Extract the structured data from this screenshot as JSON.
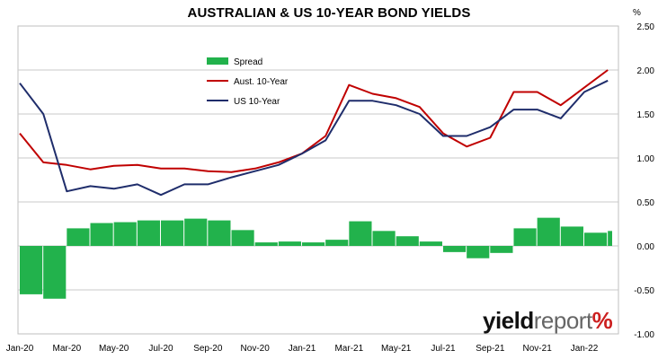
{
  "title": "AUSTRALIAN & US 10-YEAR BOND YIELDS",
  "unit_label": "%",
  "branding": {
    "part1": "yield",
    "part2": "report",
    "part3": "%"
  },
  "colors": {
    "spread": "#22b24c",
    "aus": "#c00000",
    "us": "#1f2d6b",
    "grid": "#c8c8c8"
  },
  "chart_data": {
    "type": "line",
    "title": "AUSTRALIAN & US 10-YEAR BOND YIELDS",
    "ylabel": "%",
    "ylim": [
      -1.0,
      2.5
    ],
    "y_ticks": [
      "2.50",
      "2.00",
      "1.50",
      "1.00",
      "0.50",
      "0.00",
      "-0.50",
      "-1.00"
    ],
    "x_ticks": [
      "Jan-20",
      "Mar-20",
      "May-20",
      "Jul-20",
      "Sep-20",
      "Nov-20",
      "Jan-21",
      "Mar-21",
      "May-21",
      "Jul-21",
      "Sep-21",
      "Nov-21",
      "Jan-22"
    ],
    "grid": true,
    "legend_position": "top-center",
    "x_dates": [
      "Jan-20",
      "Feb-20",
      "Mar-20",
      "Apr-20",
      "May-20",
      "Jun-20",
      "Jul-20",
      "Aug-20",
      "Sep-20",
      "Oct-20",
      "Nov-20",
      "Dec-20",
      "Jan-21",
      "Feb-21",
      "Mar-21",
      "Apr-21",
      "May-21",
      "Jun-21",
      "Jul-21",
      "Aug-21",
      "Sep-21",
      "Oct-21",
      "Nov-21",
      "Dec-21",
      "Jan-22",
      "Feb-22"
    ],
    "series": [
      {
        "name": "Spread",
        "type": "bar",
        "values": [
          -0.55,
          -0.6,
          0.2,
          0.26,
          0.27,
          0.29,
          0.29,
          0.31,
          0.29,
          0.18,
          0.04,
          0.05,
          0.04,
          0.07,
          0.28,
          0.17,
          0.11,
          0.05,
          -0.07,
          -0.14,
          -0.08,
          0.2,
          0.32,
          0.22,
          0.15,
          0.17
        ]
      },
      {
        "name": "Aust. 10-Year",
        "type": "line",
        "values": [
          1.28,
          0.95,
          0.92,
          0.87,
          0.91,
          0.92,
          0.88,
          0.88,
          0.85,
          0.84,
          0.88,
          0.95,
          1.05,
          1.25,
          1.83,
          1.73,
          1.68,
          1.58,
          1.28,
          1.13,
          1.23,
          1.75,
          1.75,
          1.6,
          1.8,
          2.0
        ]
      },
      {
        "name": "US 10-Year",
        "type": "line",
        "values": [
          1.85,
          1.5,
          0.62,
          0.68,
          0.65,
          0.7,
          0.58,
          0.7,
          0.7,
          0.78,
          0.85,
          0.92,
          1.05,
          1.2,
          1.65,
          1.65,
          1.6,
          1.5,
          1.25,
          1.25,
          1.35,
          1.55,
          1.55,
          1.45,
          1.75,
          1.88
        ]
      }
    ]
  }
}
